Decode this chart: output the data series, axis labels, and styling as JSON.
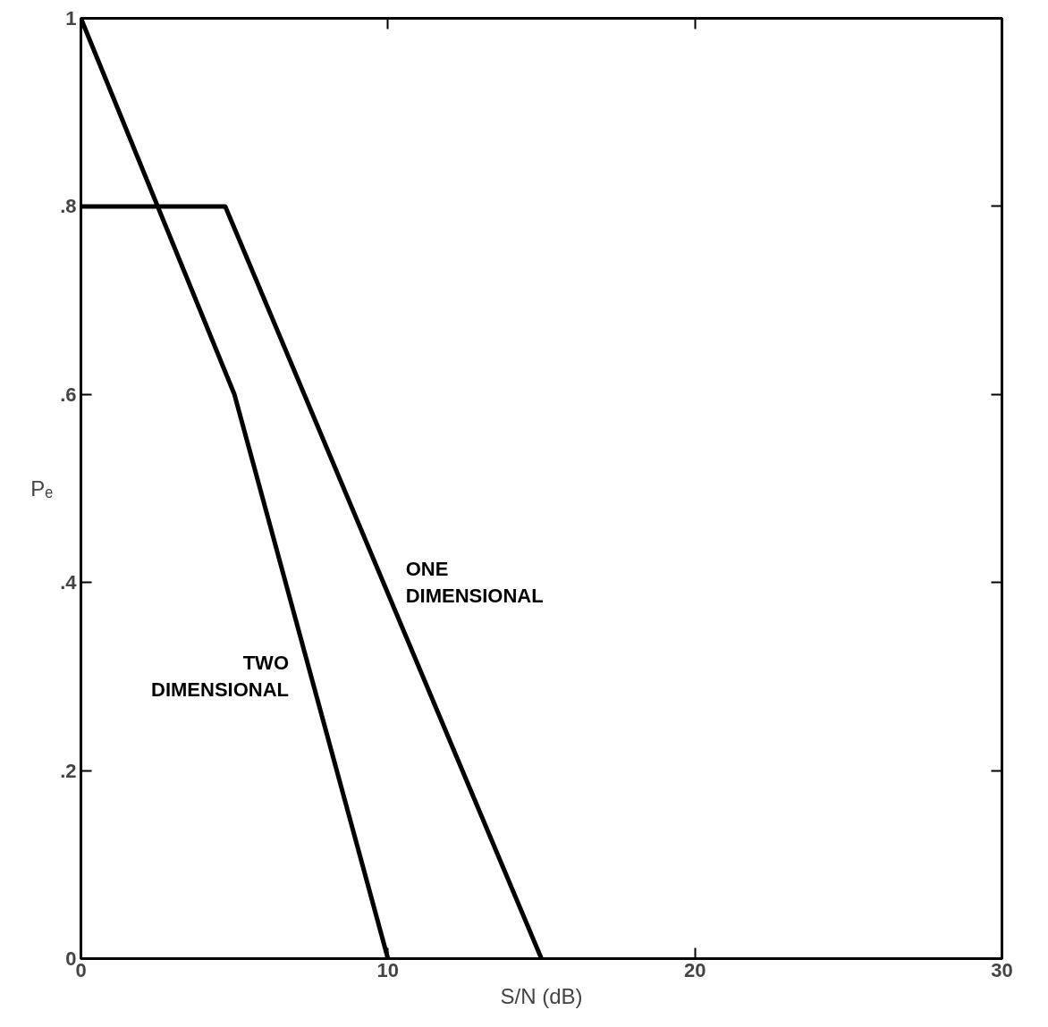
{
  "chart_data": {
    "type": "line",
    "xlabel": "S/N (dB)",
    "ylabel": "Pₑ",
    "xlim": [
      0,
      30
    ],
    "ylim": [
      0,
      1
    ],
    "xticks": [
      0,
      10,
      20,
      30
    ],
    "yticks": [
      0,
      {
        "value": 0.2,
        "label": ".2"
      },
      {
        "value": 0.4,
        "label": ".4"
      },
      {
        "value": 0.6,
        "label": ".6"
      },
      {
        "value": 0.8,
        "label": ".8"
      },
      1
    ],
    "grid": false,
    "marker": "none",
    "line_style": "solid",
    "series": [
      {
        "name": "ONE DIMENSIONAL",
        "color": "#000000",
        "x": [
          0,
          4.7,
          15
        ],
        "values": [
          0.8,
          0.8,
          0
        ]
      },
      {
        "name": "TWO DIMENSIONAL",
        "color": "#000000",
        "x": [
          0,
          5,
          10
        ],
        "values": [
          1,
          0.6,
          0
        ]
      }
    ]
  }
}
